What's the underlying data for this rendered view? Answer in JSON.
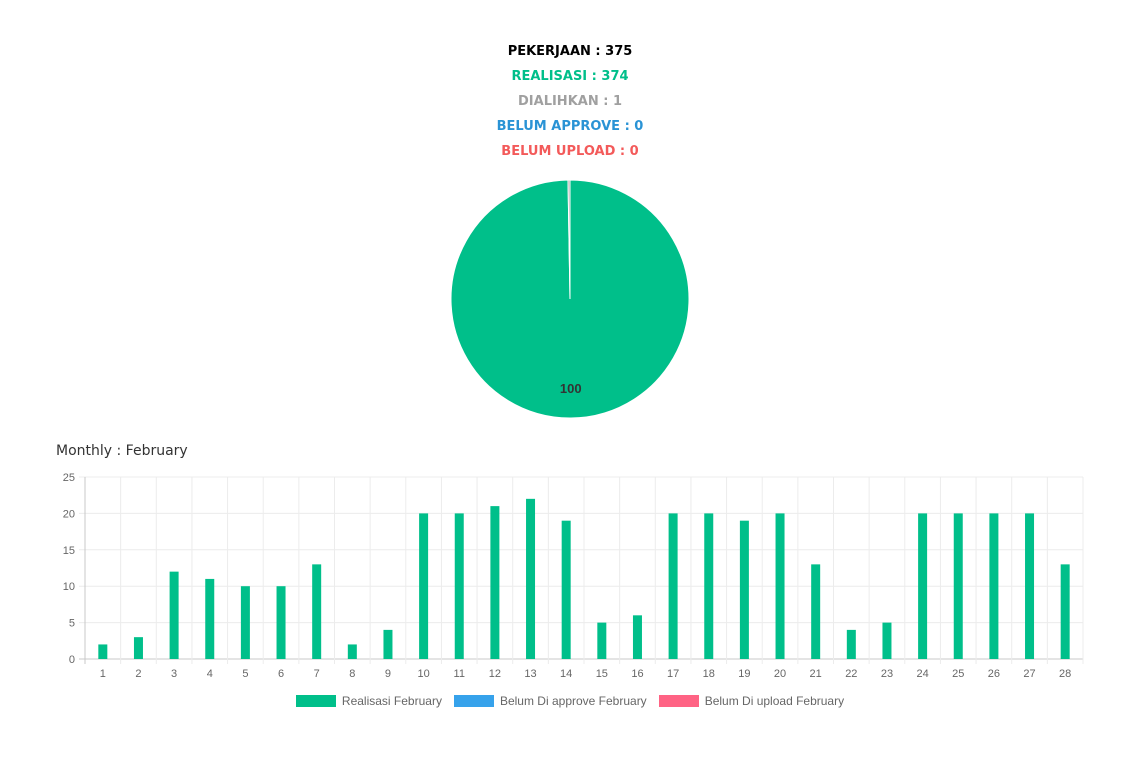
{
  "summary": {
    "pekerjaan": "PEKERJAAN : 375",
    "realisasi": "REALISASI : 374",
    "dialihkan": "DIALIHKAN : 1",
    "belum_approve": "BELUM APPROVE : 0",
    "belum_upload": "BELUM UPLOAD : 0"
  },
  "colors": {
    "pekerjaan": "#000000",
    "realisasi": "#00bf8a",
    "dialihkan": "#a0a0a0",
    "belum_approve": "#2a93d5",
    "belum_upload": "#f35a5a",
    "bar_green": "#00bf8a",
    "legend_blue": "#36a2eb",
    "legend_red": "#ff6384"
  },
  "monthly_title": "Monthly : February",
  "chart_data": [
    {
      "type": "pie",
      "slices": [
        {
          "value": 374,
          "label": "100",
          "color": "#00bf8a"
        },
        {
          "value": 1,
          "label": "",
          "color": "#a0a0a0"
        }
      ]
    },
    {
      "type": "bar",
      "categories": [
        "1",
        "2",
        "3",
        "4",
        "5",
        "6",
        "7",
        "8",
        "9",
        "10",
        "11",
        "12",
        "13",
        "14",
        "15",
        "16",
        "17",
        "18",
        "19",
        "20",
        "21",
        "22",
        "23",
        "24",
        "25",
        "26",
        "27",
        "28"
      ],
      "series": [
        {
          "name": "Realisasi February",
          "color": "#00bf8a",
          "values": [
            2,
            3,
            12,
            11,
            10,
            10,
            13,
            2,
            4,
            20,
            20,
            21,
            22,
            19,
            5,
            6,
            20,
            20,
            19,
            20,
            13,
            4,
            5,
            20,
            20,
            20,
            20,
            13
          ]
        },
        {
          "name": "Belum Di approve February",
          "color": "#36a2eb",
          "values": [
            0,
            0,
            0,
            0,
            0,
            0,
            0,
            0,
            0,
            0,
            0,
            0,
            0,
            0,
            0,
            0,
            0,
            0,
            0,
            0,
            0,
            0,
            0,
            0,
            0,
            0,
            0,
            0
          ]
        },
        {
          "name": "Belum Di upload February",
          "color": "#ff6384",
          "values": [
            0,
            0,
            0,
            0,
            0,
            0,
            0,
            0,
            0,
            0,
            0,
            0,
            0,
            0,
            0,
            0,
            0,
            0,
            0,
            0,
            0,
            0,
            0,
            0,
            0,
            0,
            0,
            0
          ]
        }
      ],
      "ylim": [
        0,
        25
      ],
      "yticks": [
        0,
        5,
        10,
        15,
        20,
        25
      ],
      "grid": true,
      "legend": "bottom"
    }
  ]
}
